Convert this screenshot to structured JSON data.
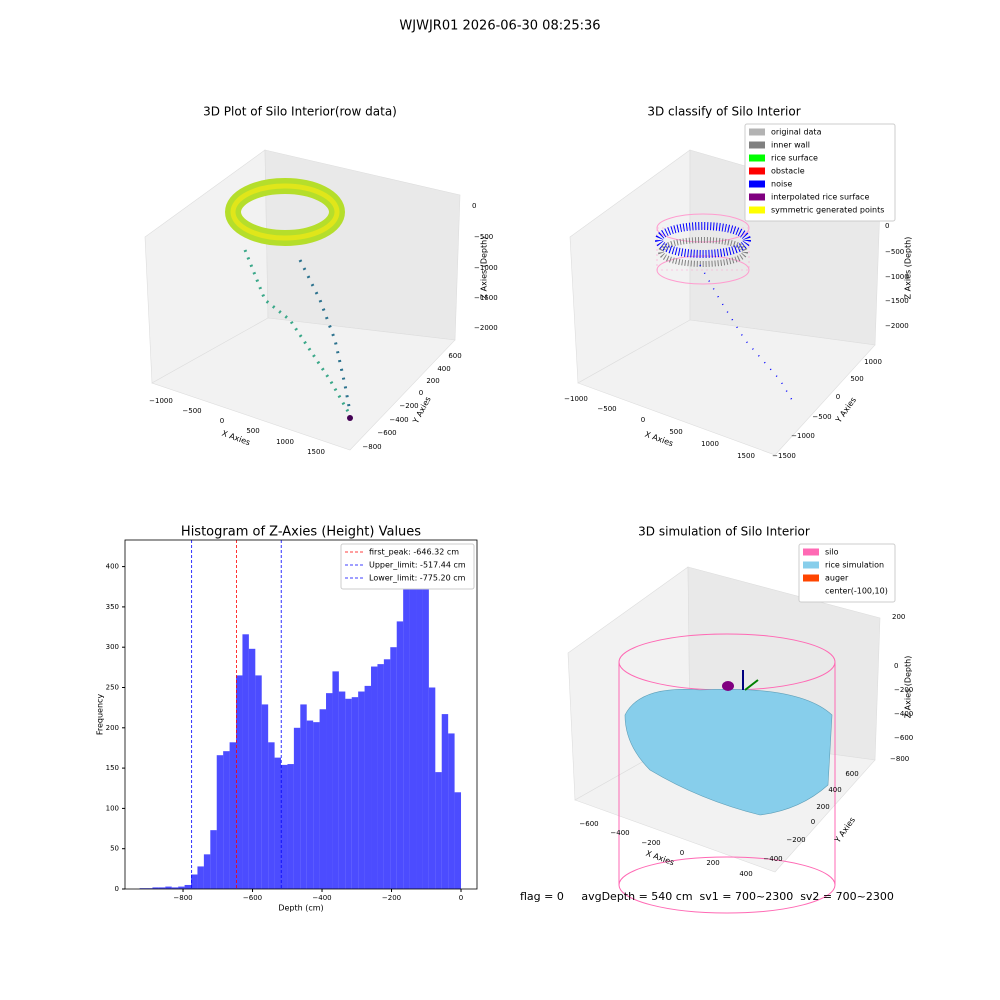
{
  "title": "WJWJR01 2026-06-30 08:25:36",
  "status": "flag = 0     avgDepth = 540 cm  sv1 = 700~2300  sv2 = 700~2300",
  "chart_data": [
    {
      "type": "scatter3d",
      "title": "3D Plot of Silo Interior(row data)",
      "xlabel": "X Axies",
      "ylabel": "Y Axies",
      "zlabel": "Z Axies (Depth)",
      "xticks": [
        {
          "value": -1000,
          "label": "−1000"
        },
        {
          "value": -500,
          "label": "−500"
        },
        0,
        500,
        1000,
        1500
      ],
      "yticks": [
        {
          "value": -800,
          "label": "−800"
        },
        {
          "value": -600,
          "label": "−600"
        },
        {
          "value": -400,
          "label": "−400"
        },
        {
          "value": -200,
          "label": "−200"
        },
        0,
        200,
        400,
        600
      ],
      "zticks": [
        0,
        {
          "value": -500,
          "label": "−500"
        },
        {
          "value": -1000,
          "label": "−1000"
        },
        {
          "value": -1500,
          "label": "−1500"
        },
        {
          "value": -2000,
          "label": "−2000"
        }
      ]
    },
    {
      "type": "scatter3d",
      "title": "3D classify of Silo Interior",
      "xlabel": "X Axies",
      "ylabel": "Y Axies",
      "zlabel": "Z Axies (Depth)",
      "xticks": [
        {
          "value": -1000,
          "label": "−1000"
        },
        {
          "value": -500,
          "label": "−500"
        },
        0,
        500,
        1000,
        1500
      ],
      "yticks": [
        {
          "value": -1500,
          "label": "−1500"
        },
        {
          "value": -1000,
          "label": "−1000"
        },
        {
          "value": -500,
          "label": "−500"
        },
        0,
        500,
        1000
      ],
      "zticks": [
        0,
        {
          "value": -500,
          "label": "−500"
        },
        {
          "value": -1000,
          "label": "−1000"
        },
        {
          "value": -1500,
          "label": "−1500"
        },
        {
          "value": -2000,
          "label": "−2000"
        }
      ],
      "legend": [
        {
          "name": "original data",
          "color": "#b3b3b3"
        },
        {
          "name": "inner wall",
          "color": "#808080"
        },
        {
          "name": "rice surface",
          "color": "#00ff00"
        },
        {
          "name": "obstacle",
          "color": "#ff0000"
        },
        {
          "name": "noise",
          "color": "#0000ff"
        },
        {
          "name": "interpolated rice surface",
          "color": "#800080"
        },
        {
          "name": "symmetric generated points",
          "color": "#ffff00"
        }
      ]
    },
    {
      "type": "histogram",
      "title": "Histogram of Z-Axies (Height) Values",
      "xlabel": "Depth (cm)",
      "ylabel": "Frequency",
      "color": "#0000ff",
      "alpha": 0.7,
      "bins": [
        -925,
        -906.5,
        -888,
        -869.5,
        -851,
        -832.5,
        -814,
        -795.5,
        -777,
        -758.5,
        -740,
        -721.5,
        -703,
        -684.5,
        -666,
        -647.5,
        -629,
        -610.5,
        -592,
        -573.5,
        -555,
        -536.5,
        -518,
        -499.5,
        -481,
        -462.5,
        -444,
        -425.5,
        -407,
        -388.5,
        -370,
        -351.5,
        -333,
        -314.5,
        -296,
        -277.5,
        -259,
        -240.5,
        -222,
        -203.5,
        -185,
        -166.5,
        -148,
        -129.5,
        -111,
        -92.5,
        -74,
        -55.5,
        -37,
        -18.5,
        0
      ],
      "values": [
        1,
        1,
        2,
        2,
        3,
        2,
        3,
        5,
        18,
        28,
        43,
        73,
        166,
        171,
        182,
        265,
        316,
        298,
        265,
        229,
        182,
        163,
        154,
        155,
        200,
        229,
        209,
        207,
        223,
        243,
        270,
        245,
        236,
        238,
        245,
        252,
        276,
        279,
        285,
        300,
        332,
        379,
        405,
        415,
        380,
        250,
        145,
        217,
        193,
        120
      ],
      "vlines": [
        {
          "name": "first_peak: -646.32 cm",
          "value": -646.32,
          "color": "#ff0000"
        },
        {
          "name": "Upper_limit: -517.44 cm",
          "value": -517.44,
          "color": "#0000ff"
        },
        {
          "name": "Lower_limit: -775.20 cm",
          "value": -775.2,
          "color": "#0000ff"
        }
      ],
      "xlim": [
        -967,
        46
      ],
      "ylim": [
        0,
        433
      ],
      "xticks": [
        {
          "value": -800,
          "label": "−800"
        },
        {
          "value": -600,
          "label": "−600"
        },
        {
          "value": -400,
          "label": "−400"
        },
        {
          "value": -200,
          "label": "−200"
        },
        0
      ],
      "yticks": [
        0,
        50,
        100,
        150,
        200,
        250,
        300,
        350,
        400
      ]
    },
    {
      "type": "surface3d",
      "title": "3D simulation of Silo Interior",
      "xlabel": "X Axies",
      "ylabel": "Y Axies",
      "zlabel": "Z Axies (Depth)",
      "xticks": [
        {
          "value": -600,
          "label": "−600"
        },
        {
          "value": -400,
          "label": "−400"
        },
        {
          "value": -200,
          "label": "−200"
        },
        0,
        200,
        400
      ],
      "yticks": [
        {
          "value": -400,
          "label": "−400"
        },
        {
          "value": -200,
          "label": "−200"
        },
        0,
        200,
        400,
        600
      ],
      "zticks": [
        200,
        0,
        {
          "value": -200,
          "label": "−200"
        },
        {
          "value": -400,
          "label": "−400"
        },
        {
          "value": -600,
          "label": "−600"
        },
        {
          "value": -800,
          "label": "−800"
        }
      ],
      "legend": [
        {
          "name": "silo",
          "color": "#ff69b4"
        },
        {
          "name": "rice simulation",
          "color": "#87ceeb"
        },
        {
          "name": "auger",
          "color": "#ff4500"
        },
        {
          "name": "center(-100,10)",
          "color": null
        }
      ]
    }
  ]
}
